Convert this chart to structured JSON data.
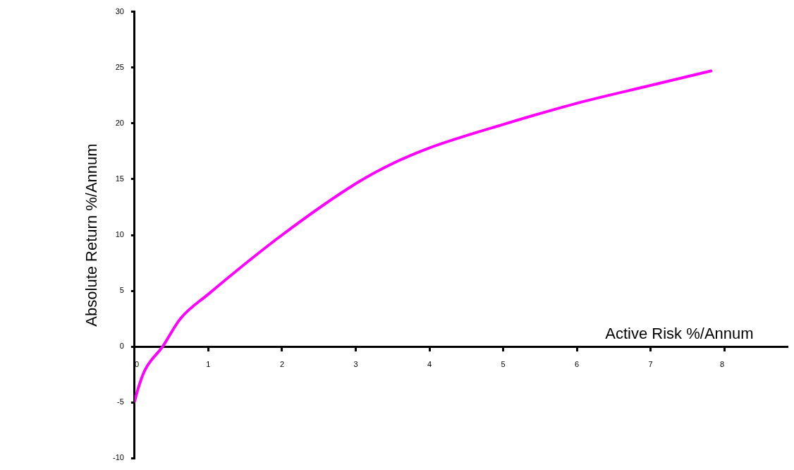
{
  "chart_data": {
    "type": "line",
    "xlabel": "Active Risk %/Annum",
    "ylabel": "Absolute Return %/Annum",
    "x": [
      0,
      0.05,
      0.14,
      0.38,
      0.62,
      1,
      2,
      3,
      3.5,
      4,
      5,
      6,
      7,
      7.82
    ],
    "series": [
      {
        "color": "#ff00ff",
        "values": [
          -4.9,
          -3.7,
          -2.1,
          0,
          2.5,
          4.7,
          10,
          14.6,
          16.4,
          17.8,
          19.9,
          21.8,
          23.4,
          24.7
        ]
      }
    ],
    "xlim": [
      0,
      8.85
    ],
    "xticks": [
      0,
      1,
      2,
      3,
      4,
      5,
      6,
      7,
      8
    ],
    "ylim": [
      -10,
      30
    ],
    "yticks": [
      -10,
      -5,
      0,
      5,
      10,
      15,
      20,
      25,
      30
    ],
    "grid": false,
    "legend": false,
    "marker": "none",
    "line_style": "solid"
  }
}
